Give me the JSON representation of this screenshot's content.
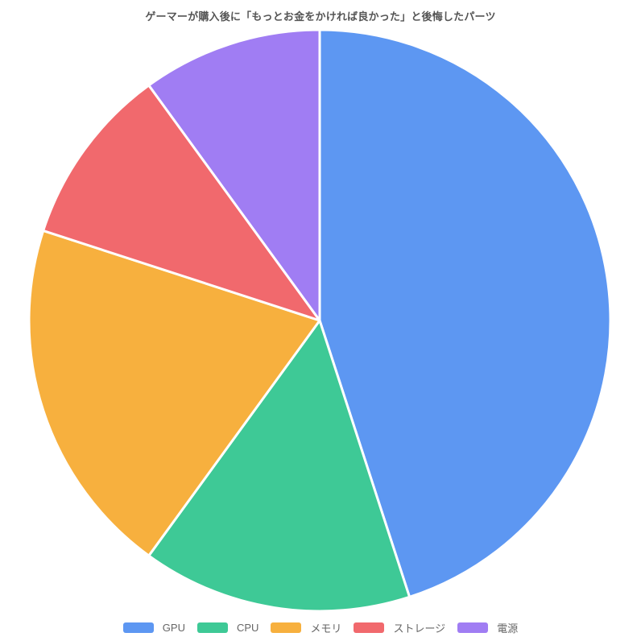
{
  "chart_data": {
    "type": "pie",
    "title": "ゲーマーが購入後に「もっとお金をかければ良かった」と後悔したパーツ",
    "labels": [
      "GPU",
      "CPU",
      "メモリ",
      "ストレージ",
      "電源"
    ],
    "values": [
      45,
      15,
      20,
      10,
      10
    ],
    "unit": "percent",
    "colors": [
      "#5d97f2",
      "#3ec996",
      "#f7b03e",
      "#f1696d",
      "#a07df3"
    ],
    "border_color": "#ffffff",
    "start_angle_deg": 0,
    "direction": "clockwise",
    "legend_position": "bottom",
    "slice_labels_shown": false
  },
  "style": {
    "background": "#ffffff",
    "title_color": "#555555",
    "legend_text_color": "#666666"
  }
}
